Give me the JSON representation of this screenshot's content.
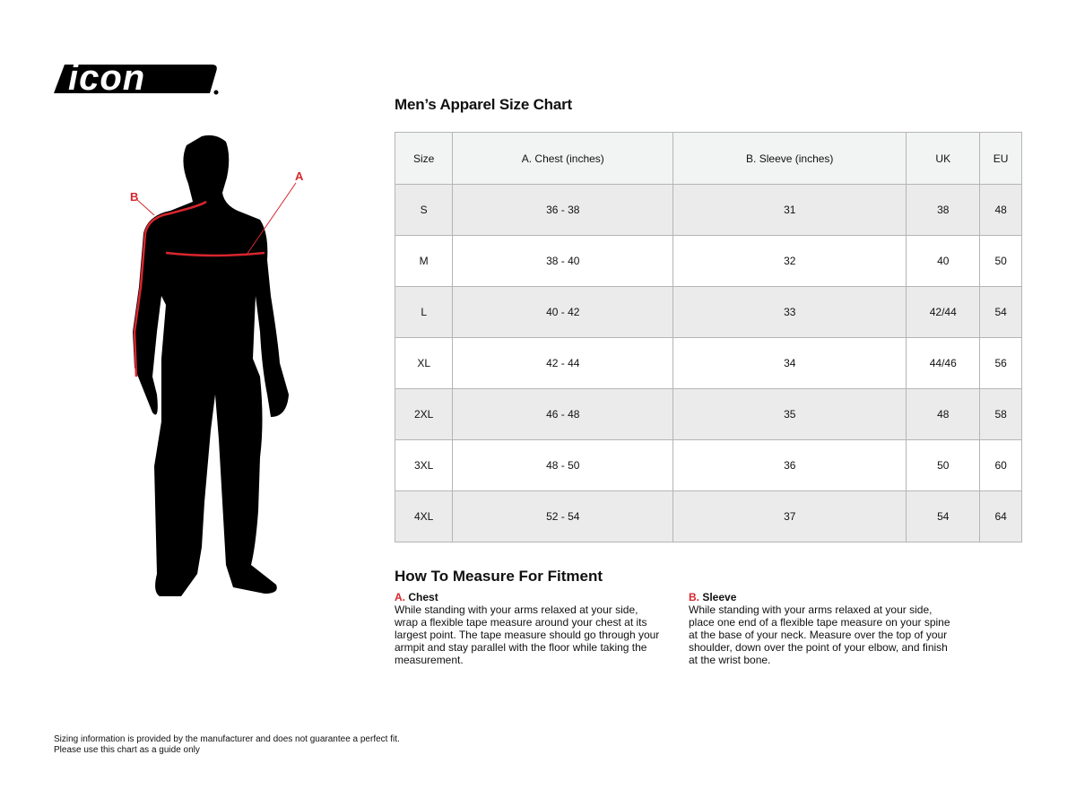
{
  "logo": {
    "text": "icon"
  },
  "figure": {
    "label_a": "A",
    "label_b": "B",
    "accent": "#d7262e"
  },
  "title": "Men’s Apparel Size Chart",
  "table": {
    "headers": [
      "Size",
      "A. Chest (inches)",
      "B. Sleeve (inches)",
      "UK",
      "EU"
    ],
    "rows": [
      [
        "S",
        "36 - 38",
        "31",
        "38",
        "48"
      ],
      [
        "M",
        "38 - 40",
        "32",
        "40",
        "50"
      ],
      [
        "L",
        "40 - 42",
        "33",
        "42/44",
        "54"
      ],
      [
        "XL",
        "42 - 44",
        "34",
        "44/46",
        "56"
      ],
      [
        "2XL",
        "46 - 48",
        "35",
        "48",
        "58"
      ],
      [
        "3XL",
        "48 - 50",
        "36",
        "50",
        "60"
      ],
      [
        "4XL",
        "52 - 54",
        "37",
        "54",
        "64"
      ]
    ]
  },
  "howto": {
    "title": "How To Measure For Fitment",
    "chest": {
      "letter": "A.",
      "name": "Chest",
      "text": "While standing with your arms relaxed at your side, wrap a flexible tape measure around your chest at its largest point. The tape measure should go through your armpit and stay parallel with the floor while taking the measurement."
    },
    "sleeve": {
      "letter": "B.",
      "name": "Sleeve",
      "text": "While standing with your arms relaxed at your side, place one end of a flexible tape measure on your spine at the base of your neck. Measure over the top of your shoulder, down over the point of your elbow, and finish at the wrist bone."
    }
  },
  "disclaimer": {
    "line1": "Sizing information is provided by the manufacturer and does not guarantee a perfect fit.",
    "line2": "Please use this chart as a guide only"
  }
}
